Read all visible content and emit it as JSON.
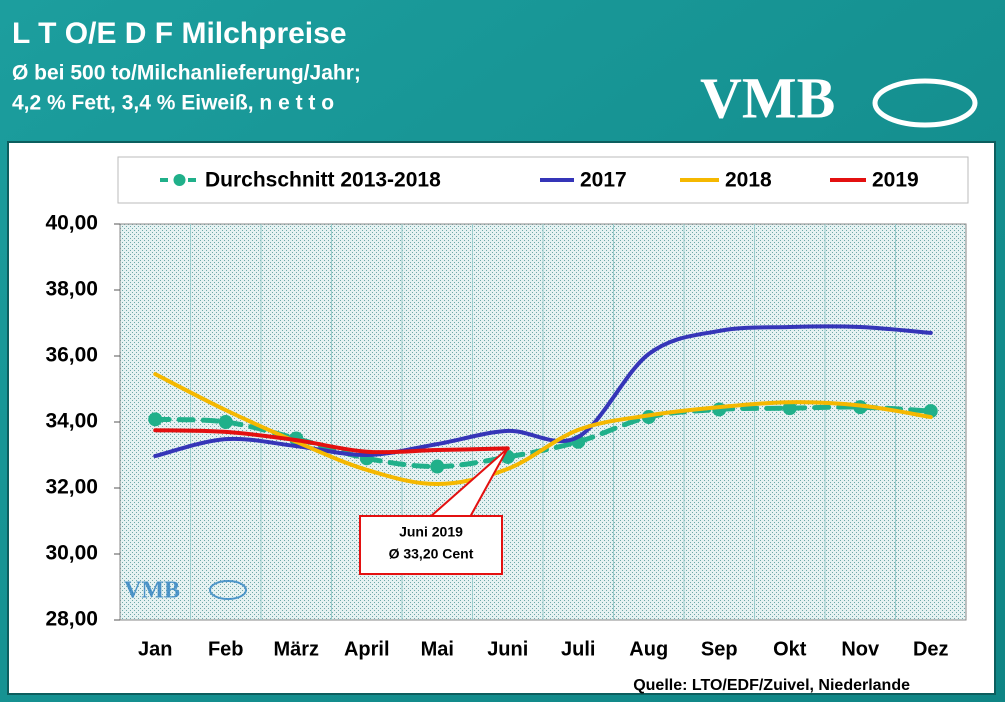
{
  "title": "L T O/E D F Milchpreise",
  "subtitle_lines": [
    "Ø bei 500 to/Milchanlieferung/Jahr;",
    "4,2 % Fett, 3,4 % Eiweiß, n e t t o"
  ],
  "logo": "VMB",
  "chart_data": {
    "type": "line",
    "categories": [
      "Jan",
      "Feb",
      "März",
      "April",
      "Mai",
      "Juni",
      "Juli",
      "Aug",
      "Sep",
      "Okt",
      "Nov",
      "Dez"
    ],
    "series": [
      {
        "name": "Durchschnitt 2013-2018",
        "color": "#20b08a",
        "values": [
          34.08,
          34.0,
          33.5,
          32.9,
          32.65,
          32.94,
          33.4,
          34.15,
          34.38,
          34.42,
          34.45,
          34.33
        ]
      },
      {
        "name": "2017",
        "color": "#3535b8",
        "values": [
          32.97,
          33.48,
          33.27,
          33.0,
          33.33,
          33.73,
          33.55,
          36.06,
          36.76,
          36.88,
          36.88,
          36.7
        ]
      },
      {
        "name": "2018",
        "color": "#f5b800",
        "values": [
          35.45,
          34.36,
          33.4,
          32.55,
          32.12,
          32.58,
          33.76,
          34.2,
          34.45,
          34.6,
          34.5,
          34.15
        ]
      },
      {
        "name": "2019",
        "color": "#e31010",
        "values": [
          33.75,
          33.7,
          33.45,
          33.1,
          33.15,
          33.2,
          null,
          null,
          null,
          null,
          null,
          null
        ]
      }
    ],
    "ylim": [
      28,
      40
    ],
    "yticks": [
      {
        "value": 28,
        "label": "28,00"
      },
      {
        "value": 30,
        "label": "30,00"
      },
      {
        "value": 32,
        "label": "32,00"
      },
      {
        "value": 34,
        "label": "34,00"
      },
      {
        "value": 36,
        "label": "36,00"
      },
      {
        "value": 38,
        "label": "38,00"
      },
      {
        "value": 40,
        "label": "40,00"
      }
    ],
    "grid": true,
    "legend": "top",
    "annotation": [
      "Juni 2019",
      "Ø 33,20 Cent"
    ],
    "watermark": "VMB",
    "source": "Quelle: LTO/EDF/Zuivel, Niederlande"
  }
}
